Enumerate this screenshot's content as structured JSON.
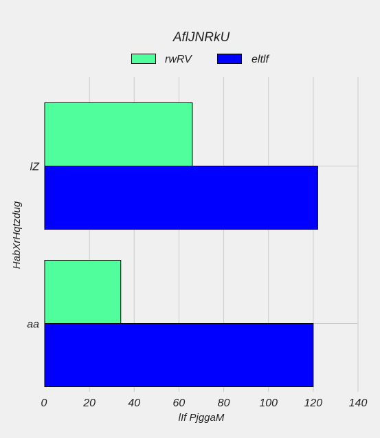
{
  "chart_data": {
    "type": "bar",
    "orientation": "horizontal",
    "title": "AflJNRkU",
    "xlabel": "lIf  PjggaM",
    "ylabel": "HabXrHqtzdug",
    "categories": [
      "lZ",
      "aa"
    ],
    "series": [
      {
        "name": "rwRV",
        "color": "#50ff9b",
        "values": [
          66,
          34
        ]
      },
      {
        "name": "eltlf",
        "color": "#0000ff",
        "values": [
          122,
          120
        ]
      }
    ],
    "xlim": [
      0,
      140
    ],
    "xticks": [
      "0",
      "20",
      "40",
      "60",
      "80",
      "100",
      "120",
      "140"
    ],
    "grid": true,
    "legend_position": "top-center"
  }
}
